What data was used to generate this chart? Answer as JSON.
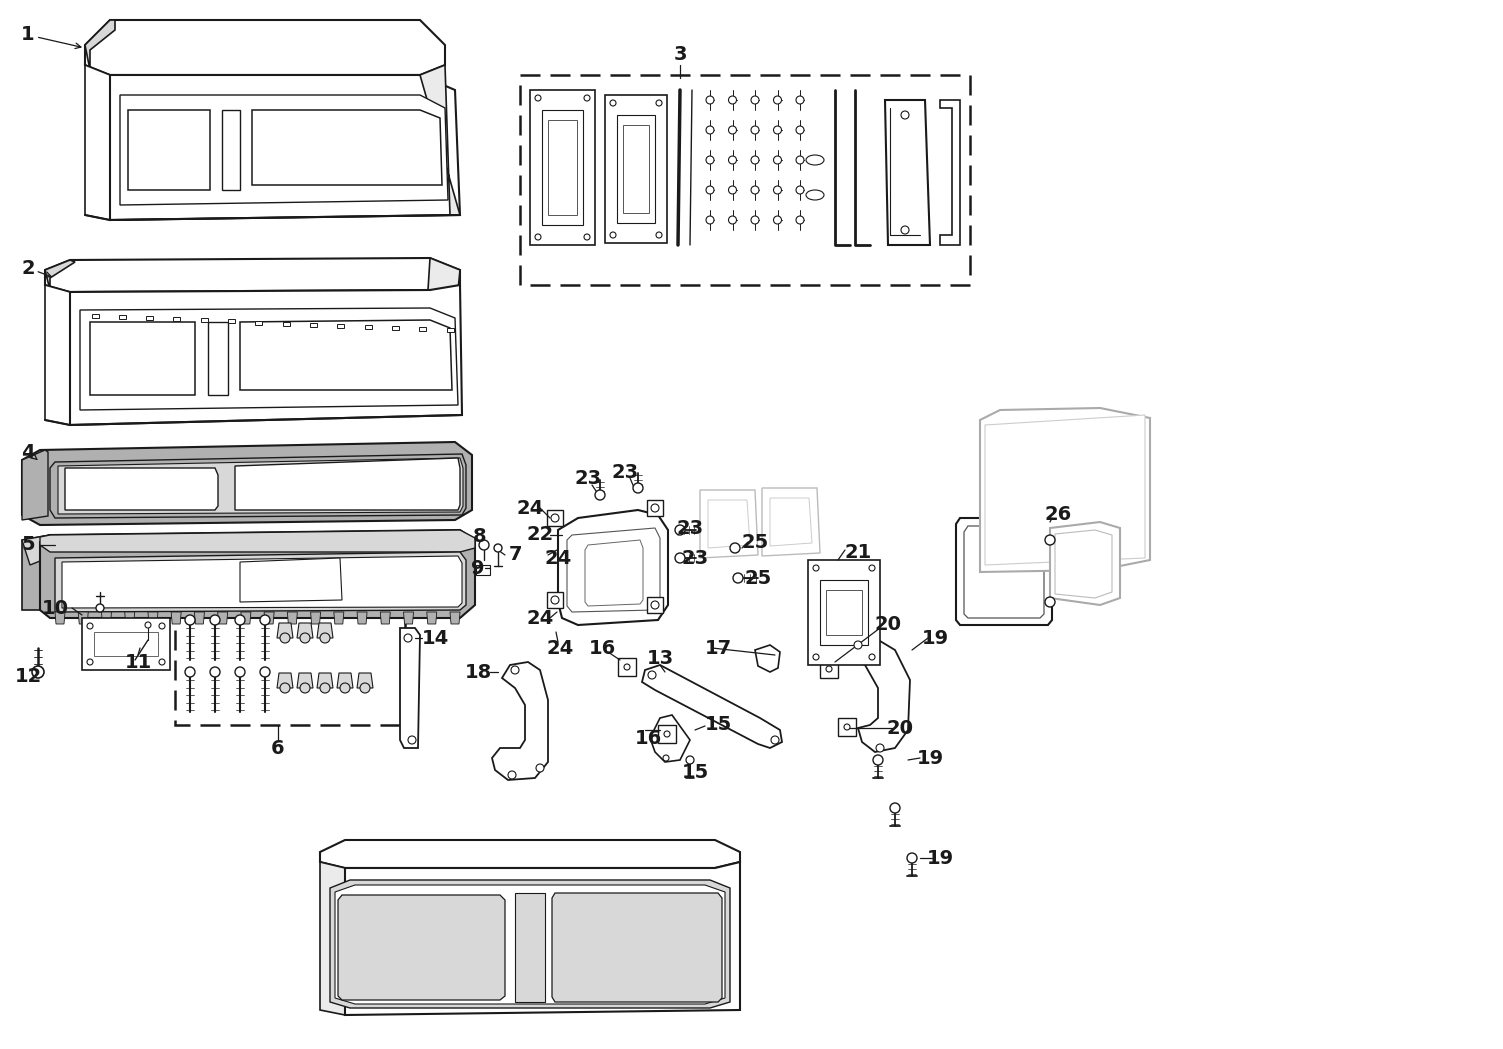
{
  "bg_color": "#ffffff",
  "line_color": "#1a1a1a",
  "gray_fill": "#b0b0b0",
  "light_gray": "#d8d8d8",
  "very_light_gray": "#ebebeb",
  "figsize": [
    15.03,
    10.49
  ],
  "dpi": 100
}
